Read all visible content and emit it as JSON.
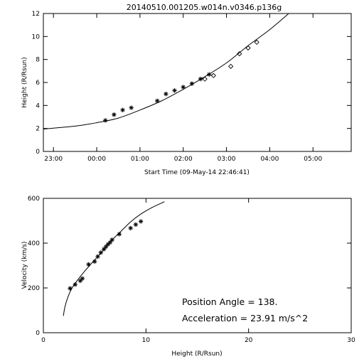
{
  "chart_data": [
    {
      "type": "scatter",
      "title": "20140510.001205.w014n.v0346.p136g",
      "xlabel": "Start Time (09-May-14 22:46:41)",
      "ylabel": "Height (R/Rsun)",
      "xlim": [
        "22:46",
        "05:53"
      ],
      "ylim": [
        0,
        12
      ],
      "x_ticks": [
        "23:00",
        "00:00",
        "01:00",
        "02:00",
        "03:00",
        "04:00",
        "05:00"
      ],
      "y_ticks": [
        "0",
        "2",
        "4",
        "6",
        "8",
        "10",
        "12"
      ],
      "series": [
        {
          "marker": "asterisk",
          "points": [
            [
              "00:12",
              2.7
            ],
            [
              "00:24",
              3.2
            ],
            [
              "00:36",
              3.6
            ],
            [
              "00:48",
              3.8
            ],
            [
              "01:24",
              4.4
            ],
            [
              "01:36",
              5.0
            ],
            [
              "01:48",
              5.3
            ],
            [
              "02:00",
              5.6
            ],
            [
              "02:12",
              5.9
            ],
            [
              "02:24",
              6.3
            ],
            [
              "02:36",
              6.7
            ]
          ]
        },
        {
          "marker": "diamond",
          "points": [
            [
              "02:30",
              6.3
            ],
            [
              "02:42",
              6.6
            ],
            [
              "03:06",
              7.4
            ],
            [
              "03:18",
              8.5
            ],
            [
              "03:30",
              9.0
            ],
            [
              "03:42",
              9.5
            ]
          ]
        },
        {
          "type": "line",
          "points": [
            [
              "22:46",
              1.95
            ],
            [
              "23:30",
              2.2
            ],
            [
              "00:00",
              2.5
            ],
            [
              "00:30",
              2.9
            ],
            [
              "01:00",
              3.6
            ],
            [
              "01:30",
              4.4
            ],
            [
              "02:00",
              5.4
            ],
            [
              "02:30",
              6.5
            ],
            [
              "03:00",
              7.7
            ],
            [
              "03:30",
              9.2
            ],
            [
              "04:00",
              10.6
            ],
            [
              "04:30",
              12.2
            ]
          ]
        }
      ]
    },
    {
      "type": "scatter",
      "xlabel": "Height (R/Rsun)",
      "ylabel": "Velocity (km/s)",
      "xlim": [
        0,
        30
      ],
      "ylim": [
        0,
        600
      ],
      "x_ticks": [
        "0",
        "10",
        "20",
        "30"
      ],
      "y_ticks": [
        "0",
        "200",
        "400",
        "600"
      ],
      "series": [
        {
          "marker": "asterisk",
          "points": [
            [
              2.6,
              198
            ],
            [
              3.1,
              215
            ],
            [
              3.6,
              232
            ],
            [
              3.8,
              242
            ],
            [
              4.4,
              305
            ],
            [
              5.0,
              318
            ],
            [
              5.3,
              340
            ],
            [
              5.6,
              358
            ],
            [
              5.9,
              373
            ],
            [
              6.1,
              384
            ],
            [
              6.3,
              395
            ],
            [
              6.5,
              403
            ],
            [
              6.7,
              415
            ],
            [
              7.4,
              440
            ],
            [
              8.5,
              467
            ],
            [
              9.0,
              483
            ],
            [
              9.5,
              497
            ]
          ]
        },
        {
          "type": "line",
          "points": [
            [
              1.95,
              75
            ],
            [
              2.1,
              115
            ],
            [
              2.4,
              160
            ],
            [
              2.8,
              200
            ],
            [
              3.5,
              245
            ],
            [
              4.5,
              300
            ],
            [
              5.5,
              350
            ],
            [
              6.5,
              405
            ],
            [
              7.5,
              450
            ],
            [
              8.5,
              495
            ],
            [
              9.5,
              530
            ],
            [
              10.5,
              557
            ],
            [
              11.8,
              585
            ]
          ]
        }
      ],
      "annotations": [
        "Position Angle =  138.",
        "Acceleration =  23.91 m/s^2"
      ]
    }
  ]
}
